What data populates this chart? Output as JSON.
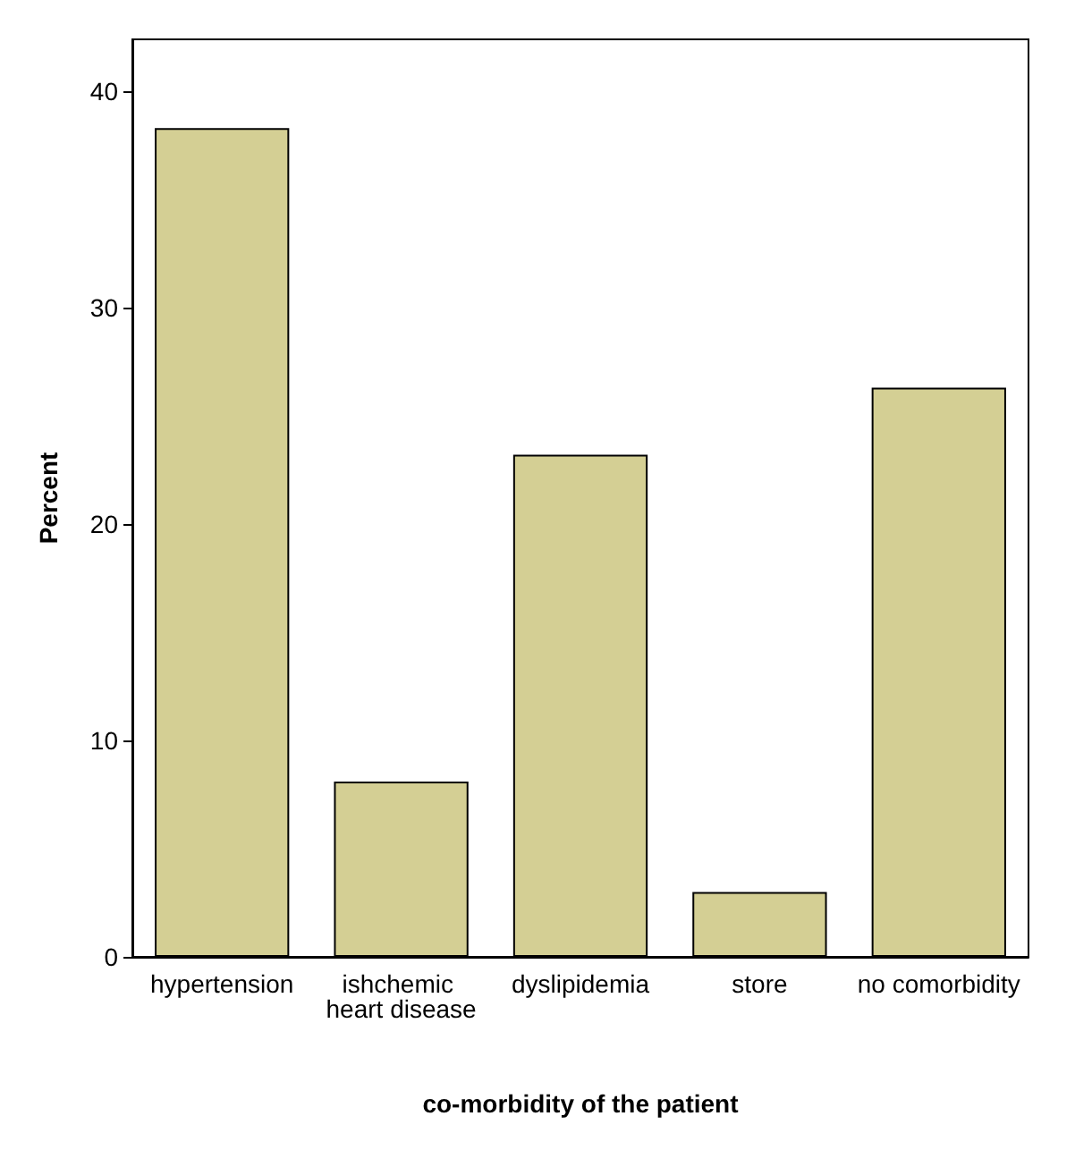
{
  "chart_data": {
    "type": "bar",
    "xlabel": "co-morbidity of the patient",
    "ylabel": "Percent",
    "categories": [
      "hypertension",
      "ishchemic heart disease",
      "dyslipidemia",
      "store",
      "no comorbidity"
    ],
    "values": [
      38.3,
      8.1,
      23.2,
      3.0,
      26.3
    ],
    "color": "#d4cf94",
    "ylim": [
      0,
      42.4
    ],
    "yticks": [
      0,
      10,
      20,
      30,
      40
    ],
    "grid": false
  }
}
